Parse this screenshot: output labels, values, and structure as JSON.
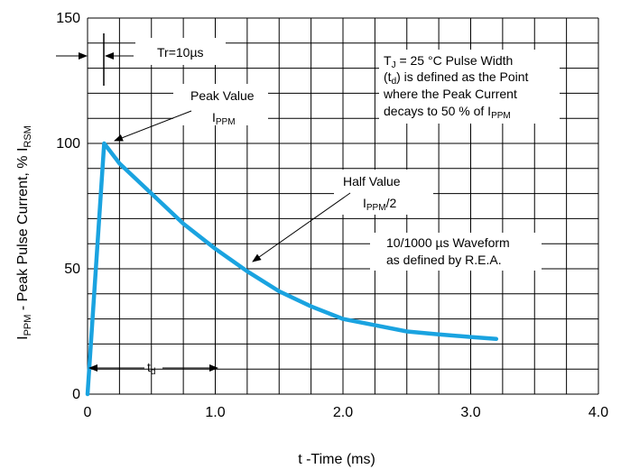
{
  "chart_data": {
    "type": "line",
    "xlabel": "t -Time (ms)",
    "ylabel": "I<sub>PPM</sub> - Peak Pulse Current, % I<sub>RSM</sub>",
    "ylabel_parts": {
      "main": "I",
      "sub1": "PPM",
      "mid": " - Peak Pulse Current, % I",
      "sub2": "RSM"
    },
    "xlim": [
      0,
      4.0
    ],
    "ylim": [
      0,
      150
    ],
    "grid": true,
    "x_ticks": [
      {
        "value": 0,
        "label": "0"
      },
      {
        "value": 1.0,
        "label": "1.0"
      },
      {
        "value": 2.0,
        "label": "2.0"
      },
      {
        "value": 3.0,
        "label": "3.0"
      },
      {
        "value": 4.0,
        "label": "4.0"
      }
    ],
    "y_ticks": [
      {
        "value": 0,
        "label": "0"
      },
      {
        "value": 50,
        "label": "50"
      },
      {
        "value": 100,
        "label": "100"
      },
      {
        "value": 150,
        "label": "150"
      }
    ],
    "series": [
      {
        "color": "#1aa3e0",
        "points": [
          [
            0.0,
            0
          ],
          [
            0.13,
            100
          ],
          [
            0.25,
            92
          ],
          [
            0.5,
            80
          ],
          [
            0.75,
            68
          ],
          [
            1.0,
            58
          ],
          [
            1.25,
            49
          ],
          [
            1.5,
            41
          ],
          [
            1.75,
            35
          ],
          [
            2.0,
            30
          ],
          [
            2.25,
            27.5
          ],
          [
            2.5,
            25
          ],
          [
            2.75,
            23.8
          ],
          [
            3.0,
            22.8
          ],
          [
            3.2,
            22
          ]
        ]
      }
    ],
    "annotations": {
      "tr": {
        "text": "Tr=10µs"
      },
      "peak": {
        "line1": "Peak Value",
        "line2_main": "I",
        "line2_sub": "PPM"
      },
      "half": {
        "line1": "Half Value",
        "line2_main": "I",
        "line2_sub": "PPM",
        "line2_tail": "/2"
      },
      "tj": {
        "line1_main": "T",
        "line1_sub": "J",
        "line1_tail": " = 25 °C Pulse Width",
        "line2_pre": "(t",
        "line2_sub": "d",
        "line2_tail": ") is defined as the Point",
        "line3": "where the Peak Current",
        "line4_main": "decays to 50 % of I",
        "line4_sub": "PPM"
      },
      "waveform": {
        "line1": "10/1000 µs Waveform",
        "line2": "as defined by R.E.A."
      },
      "td": {
        "main": "t",
        "sub": "d"
      }
    }
  }
}
